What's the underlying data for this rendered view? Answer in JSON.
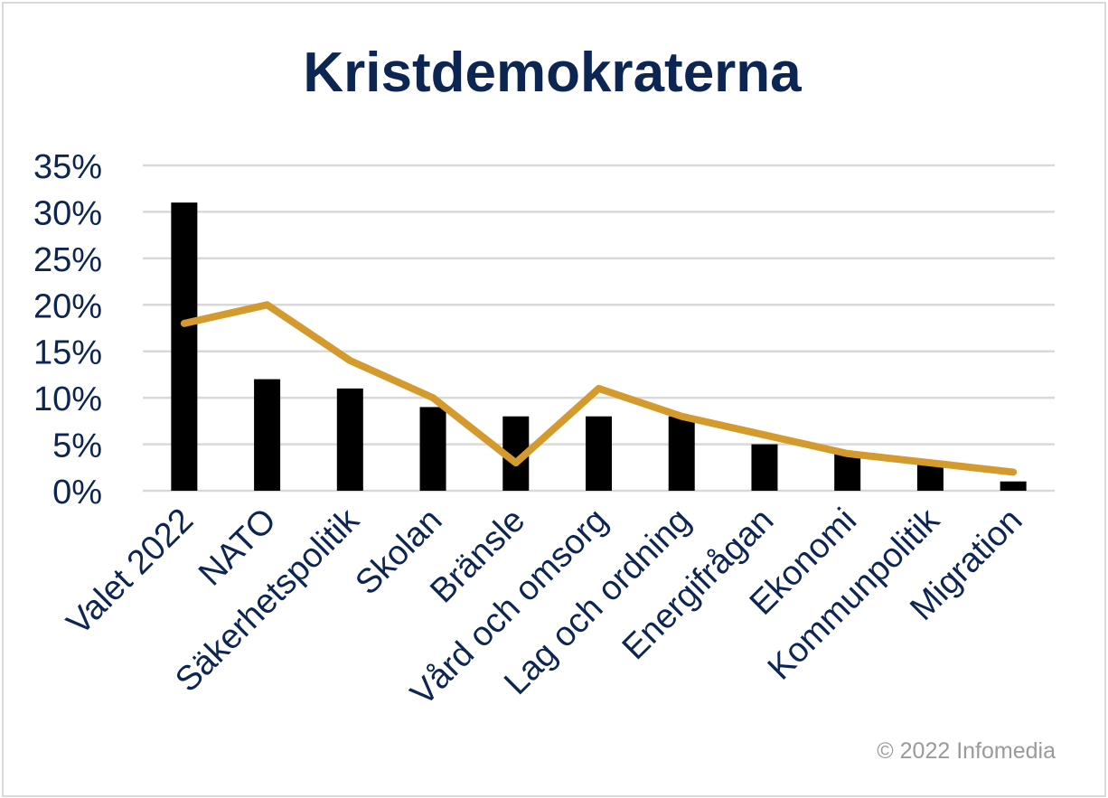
{
  "title": "Kristdemokraterna",
  "copyright": "© 2022 Infomedia",
  "colors": {
    "bar": "#000000",
    "line": "#d49a2e",
    "grid": "#d9d9d9",
    "text": "#0d2552"
  },
  "chart_data": {
    "type": "bar",
    "title": "Kristdemokraterna",
    "categories": [
      "Valet 2022",
      "NATO",
      "Säkerhetspolitik",
      "Skolan",
      "Bränsle",
      "Vård och omsorg",
      "Lag och ordning",
      "Energifrågan",
      "Ekonomi",
      "Kommunpolitik",
      "Migration"
    ],
    "series": [
      {
        "type": "bar",
        "values": [
          31,
          12,
          11,
          9,
          8,
          8,
          8,
          5,
          4,
          3,
          1
        ]
      },
      {
        "type": "line",
        "values": [
          18,
          20,
          14,
          10,
          3,
          11,
          8,
          6,
          4,
          3,
          2
        ]
      }
    ],
    "ylim": [
      0,
      35
    ],
    "yticks": [
      "0%",
      "5%",
      "10%",
      "15%",
      "20%",
      "25%",
      "30%",
      "35%"
    ],
    "grid": true,
    "legend": "none"
  }
}
